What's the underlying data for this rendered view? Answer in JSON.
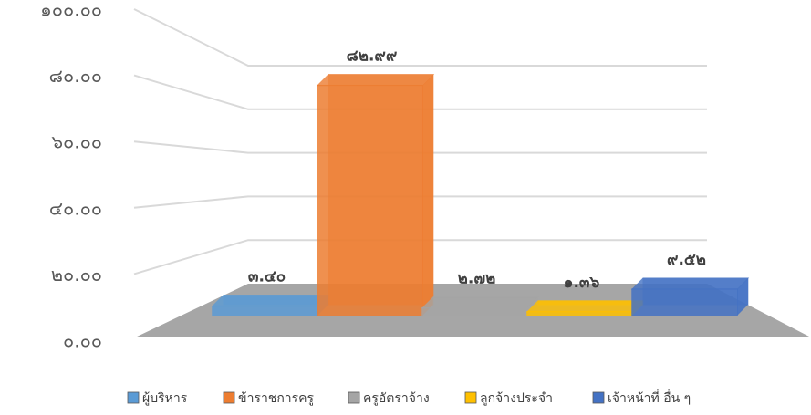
{
  "chart_data": {
    "type": "bar3d",
    "categories": [
      "ผู้บริหาร",
      "ข้าราชการครู",
      "ครูอัตราจ้าง",
      "ลูกจ้างประจำ",
      "เจ้าหน้าที่ อื่น ๆ"
    ],
    "values": [
      3.4,
      82.99,
      2.72,
      1.36,
      9.52
    ],
    "value_labels": [
      "๓.๔๐",
      "๘๒.๙๙",
      "๒.๗๒",
      "๑.๓๖",
      "๙.๕๒"
    ],
    "colors": [
      "#5b9bd5",
      "#ed7d31",
      "#a5a5a5",
      "#ffc000",
      "#4472c4"
    ],
    "ylim": [
      0,
      100
    ],
    "yticks": [
      {
        "value": 0,
        "label": "๐.๐๐"
      },
      {
        "value": 20,
        "label": "๒๐.๐๐"
      },
      {
        "value": 40,
        "label": "๔๐.๐๐"
      },
      {
        "value": 60,
        "label": "๖๐.๐๐"
      },
      {
        "value": 80,
        "label": "๘๐.๐๐"
      },
      {
        "value": 100,
        "label": "๑๐๐.๐๐"
      }
    ],
    "grid": true,
    "legend": "bottom"
  }
}
